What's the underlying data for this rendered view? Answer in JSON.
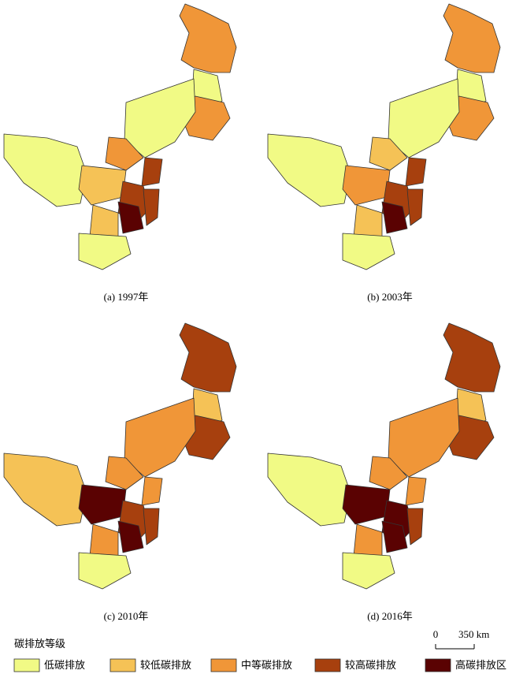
{
  "panels": [
    {
      "caption": "(a) 1997年"
    },
    {
      "caption": "(b) 2003年"
    },
    {
      "caption": "(c) 2010年"
    },
    {
      "caption": "(d) 2016年"
    }
  ],
  "legend": {
    "title": "碳排放等级",
    "items": [
      {
        "label": "低碳排放",
        "color": "#f1fa85"
      },
      {
        "label": "较低碳排放",
        "color": "#f5c256"
      },
      {
        "label": "中等碳排放",
        "color": "#f09638"
      },
      {
        "label": "较高碳排放",
        "color": "#a7400e"
      },
      {
        "label": "高碳排放区",
        "color": "#5a0202"
      }
    ]
  },
  "scale_bar": {
    "labels": [
      "0",
      "350 km"
    ]
  }
}
